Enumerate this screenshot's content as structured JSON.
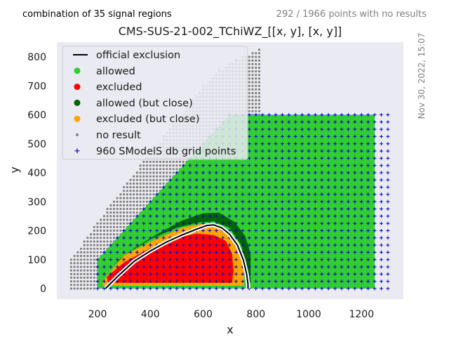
{
  "header": {
    "left_note": "combination of 35 signal regions",
    "right_note": "292 / 1966 points with no results",
    "timestamp": "Nov 30, 2022, 15:07"
  },
  "chart_data": {
    "type": "scatter",
    "title": "CMS-SUS-21-002_TChiWZ_[[x, y], [x, y]]",
    "xlabel": "x",
    "ylabel": "y",
    "xlim": [
      80,
      1325
    ],
    "ylim": [
      -40,
      850
    ],
    "xticks": [
      200,
      400,
      600,
      800,
      1000,
      1200
    ],
    "yticks": [
      0,
      100,
      200,
      300,
      400,
      500,
      600,
      700,
      800
    ],
    "grid": false,
    "background": "#eaeaf2",
    "legend_position": "top-left",
    "legend": [
      {
        "label": "official exclusion",
        "kind": "line",
        "color": "#000000"
      },
      {
        "label": "allowed",
        "kind": "dot",
        "color": "#32cd32"
      },
      {
        "label": "excluded",
        "kind": "dot",
        "color": "#ff0000"
      },
      {
        "label": "allowed (but close)",
        "kind": "dot",
        "color": "#006400"
      },
      {
        "label": "excluded (but close)",
        "kind": "dot",
        "color": "#ffa500"
      },
      {
        "label": "no result",
        "kind": "smalldot",
        "color": "#808080"
      },
      {
        "label": "960 SModelS db grid points",
        "kind": "plus",
        "color": "#0000cd"
      }
    ],
    "regions": {
      "allowed_boundary": [
        [
          200,
          0
        ],
        [
          200,
          100
        ],
        [
          350,
          250
        ],
        [
          600,
          500
        ],
        [
          700,
          600
        ],
        [
          810,
          600
        ],
        [
          1250,
          600
        ],
        [
          1250,
          0
        ]
      ],
      "excluded": [
        [
          235,
          40
        ],
        [
          300,
          90
        ],
        [
          400,
          140
        ],
        [
          500,
          175
        ],
        [
          575,
          190
        ],
        [
          640,
          185
        ],
        [
          685,
          165
        ],
        [
          710,
          120
        ],
        [
          715,
          60
        ],
        [
          710,
          20
        ],
        [
          300,
          20
        ],
        [
          240,
          20
        ]
      ],
      "excluded_close": [
        [
          220,
          25
        ],
        [
          300,
          115
        ],
        [
          420,
          170
        ],
        [
          520,
          210
        ],
        [
          600,
          225
        ],
        [
          650,
          218
        ],
        [
          700,
          195
        ],
        [
          730,
          165
        ],
        [
          750,
          120
        ],
        [
          755,
          60
        ],
        [
          755,
          10
        ],
        [
          220,
          10
        ]
      ],
      "allowed_close": [
        [
          260,
          80
        ],
        [
          340,
          140
        ],
        [
          430,
          190
        ],
        [
          520,
          235
        ],
        [
          600,
          260
        ],
        [
          660,
          262
        ],
        [
          720,
          230
        ],
        [
          760,
          180
        ],
        [
          780,
          120
        ],
        [
          780,
          20
        ],
        [
          770,
          20
        ],
        [
          760,
          90
        ],
        [
          745,
          150
        ],
        [
          700,
          210
        ],
        [
          640,
          232
        ],
        [
          580,
          228
        ],
        [
          500,
          210
        ],
        [
          400,
          170
        ],
        [
          300,
          115
        ]
      ]
    },
    "official_exclusion": {
      "x": [
        230,
        280,
        340,
        400,
        460,
        520,
        575,
        615,
        640,
        670,
        700,
        730,
        752,
        765,
        770,
        770
      ],
      "y": [
        0,
        45,
        95,
        130,
        160,
        185,
        205,
        218,
        220,
        210,
        188,
        150,
        100,
        50,
        15,
        0
      ]
    },
    "no_result_region": {
      "lower_edge": [
        [
          100,
          0
        ],
        [
          100,
          100
        ],
        [
          200,
          230
        ],
        [
          300,
          350
        ],
        [
          400,
          470
        ],
        [
          500,
          580
        ],
        [
          600,
          700
        ],
        [
          700,
          780
        ],
        [
          825,
          830
        ]
      ],
      "upper_edge": [
        [
          825,
          830
        ],
        [
          825,
          600
        ],
        [
          200,
          0
        ]
      ]
    },
    "grid_points": {
      "x_start": 200,
      "x_end": 1300,
      "x_step": 25,
      "y_start": 0,
      "y_end": 600,
      "y_step": 25,
      "extra_columns": [
        1275,
        1300
      ]
    }
  }
}
